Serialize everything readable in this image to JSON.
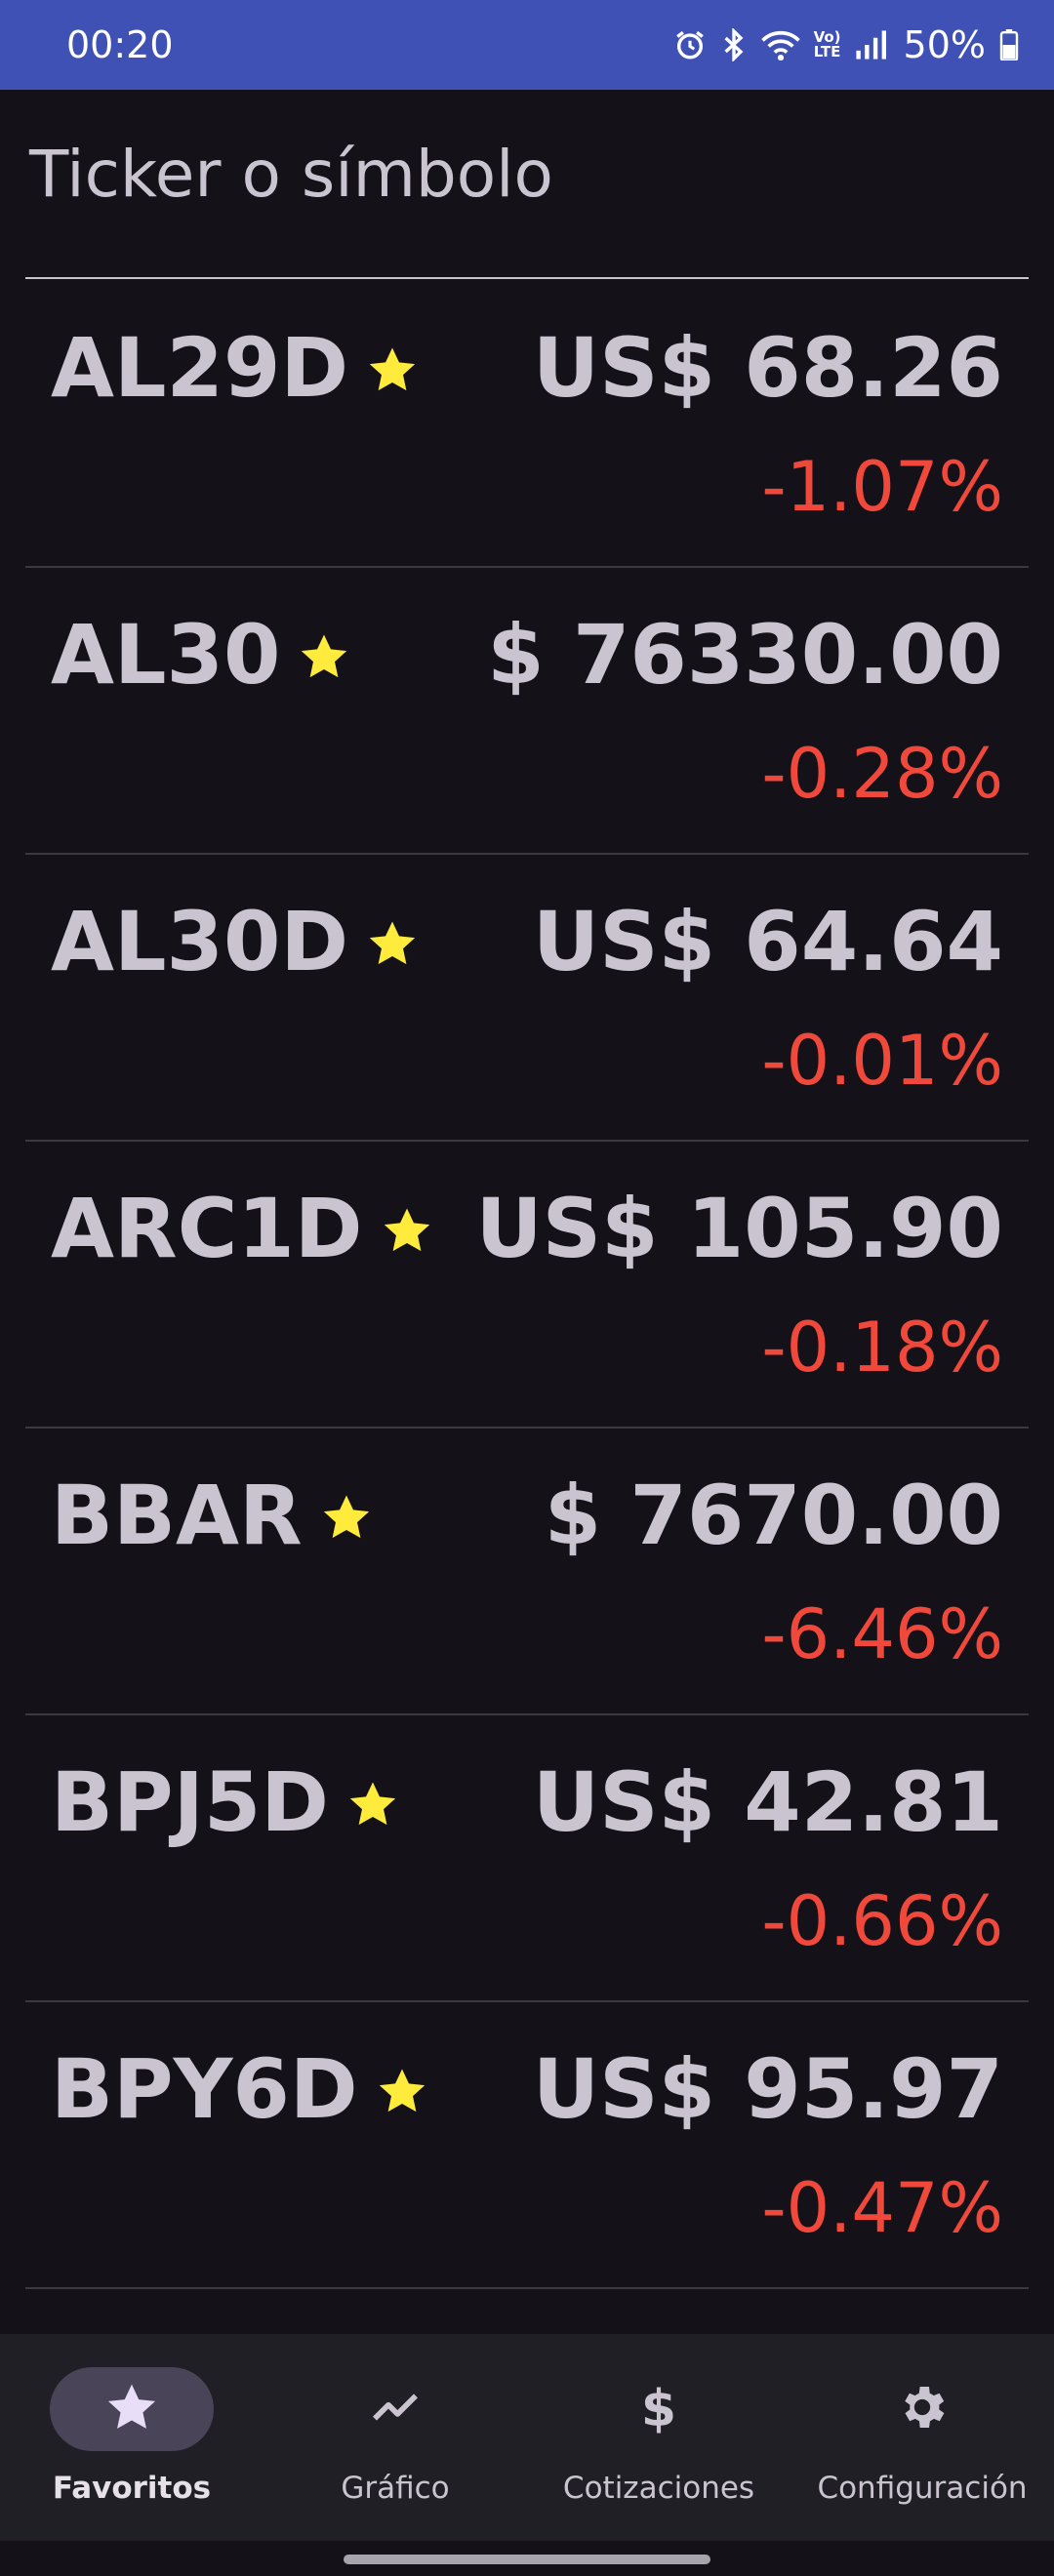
{
  "status_bar": {
    "time": "00:20",
    "battery": "50%",
    "lte_top": "Vo)",
    "lte_bottom": "LTE",
    "icons": [
      "alarm-icon",
      "bluetooth-icon",
      "wifi-icon",
      "volte-icon",
      "signal-icon",
      "battery-icon"
    ]
  },
  "search": {
    "placeholder": "Ticker o símbolo"
  },
  "colors": {
    "background": "#141218",
    "status_bar": "#3f51b5",
    "text": "#cac4d0",
    "negative": "#f0493c",
    "star": "#ffeb3b",
    "nav_background": "#211f26",
    "nav_active_pill": "#4a4458"
  },
  "quotes": [
    {
      "ticker": "AL29D",
      "price": "US$ 68.26",
      "change": "-1.07%",
      "favorite": true
    },
    {
      "ticker": "AL30",
      "price": "$ 76330.00",
      "change": "-0.28%",
      "favorite": true
    },
    {
      "ticker": "AL30D",
      "price": "US$ 64.64",
      "change": "-0.01%",
      "favorite": true
    },
    {
      "ticker": "ARC1D",
      "price": "US$ 105.90",
      "change": "-0.18%",
      "favorite": true
    },
    {
      "ticker": "BBAR",
      "price": "$ 7670.00",
      "change": "-6.46%",
      "favorite": true
    },
    {
      "ticker": "BPJ5D",
      "price": "US$ 42.81",
      "change": "-0.66%",
      "favorite": true
    },
    {
      "ticker": "BPY6D",
      "price": "US$ 95.97",
      "change": "-0.47%",
      "favorite": true
    }
  ],
  "bottom_nav": {
    "items": [
      {
        "label": "Favoritos",
        "icon": "star-icon",
        "active": true
      },
      {
        "label": "Gráfico",
        "icon": "chart-line-icon",
        "active": false
      },
      {
        "label": "Cotizaciones",
        "icon": "dollar-icon",
        "active": false
      },
      {
        "label": "Configuración",
        "icon": "gear-icon",
        "active": false
      }
    ],
    "dollar_glyph": "$"
  }
}
